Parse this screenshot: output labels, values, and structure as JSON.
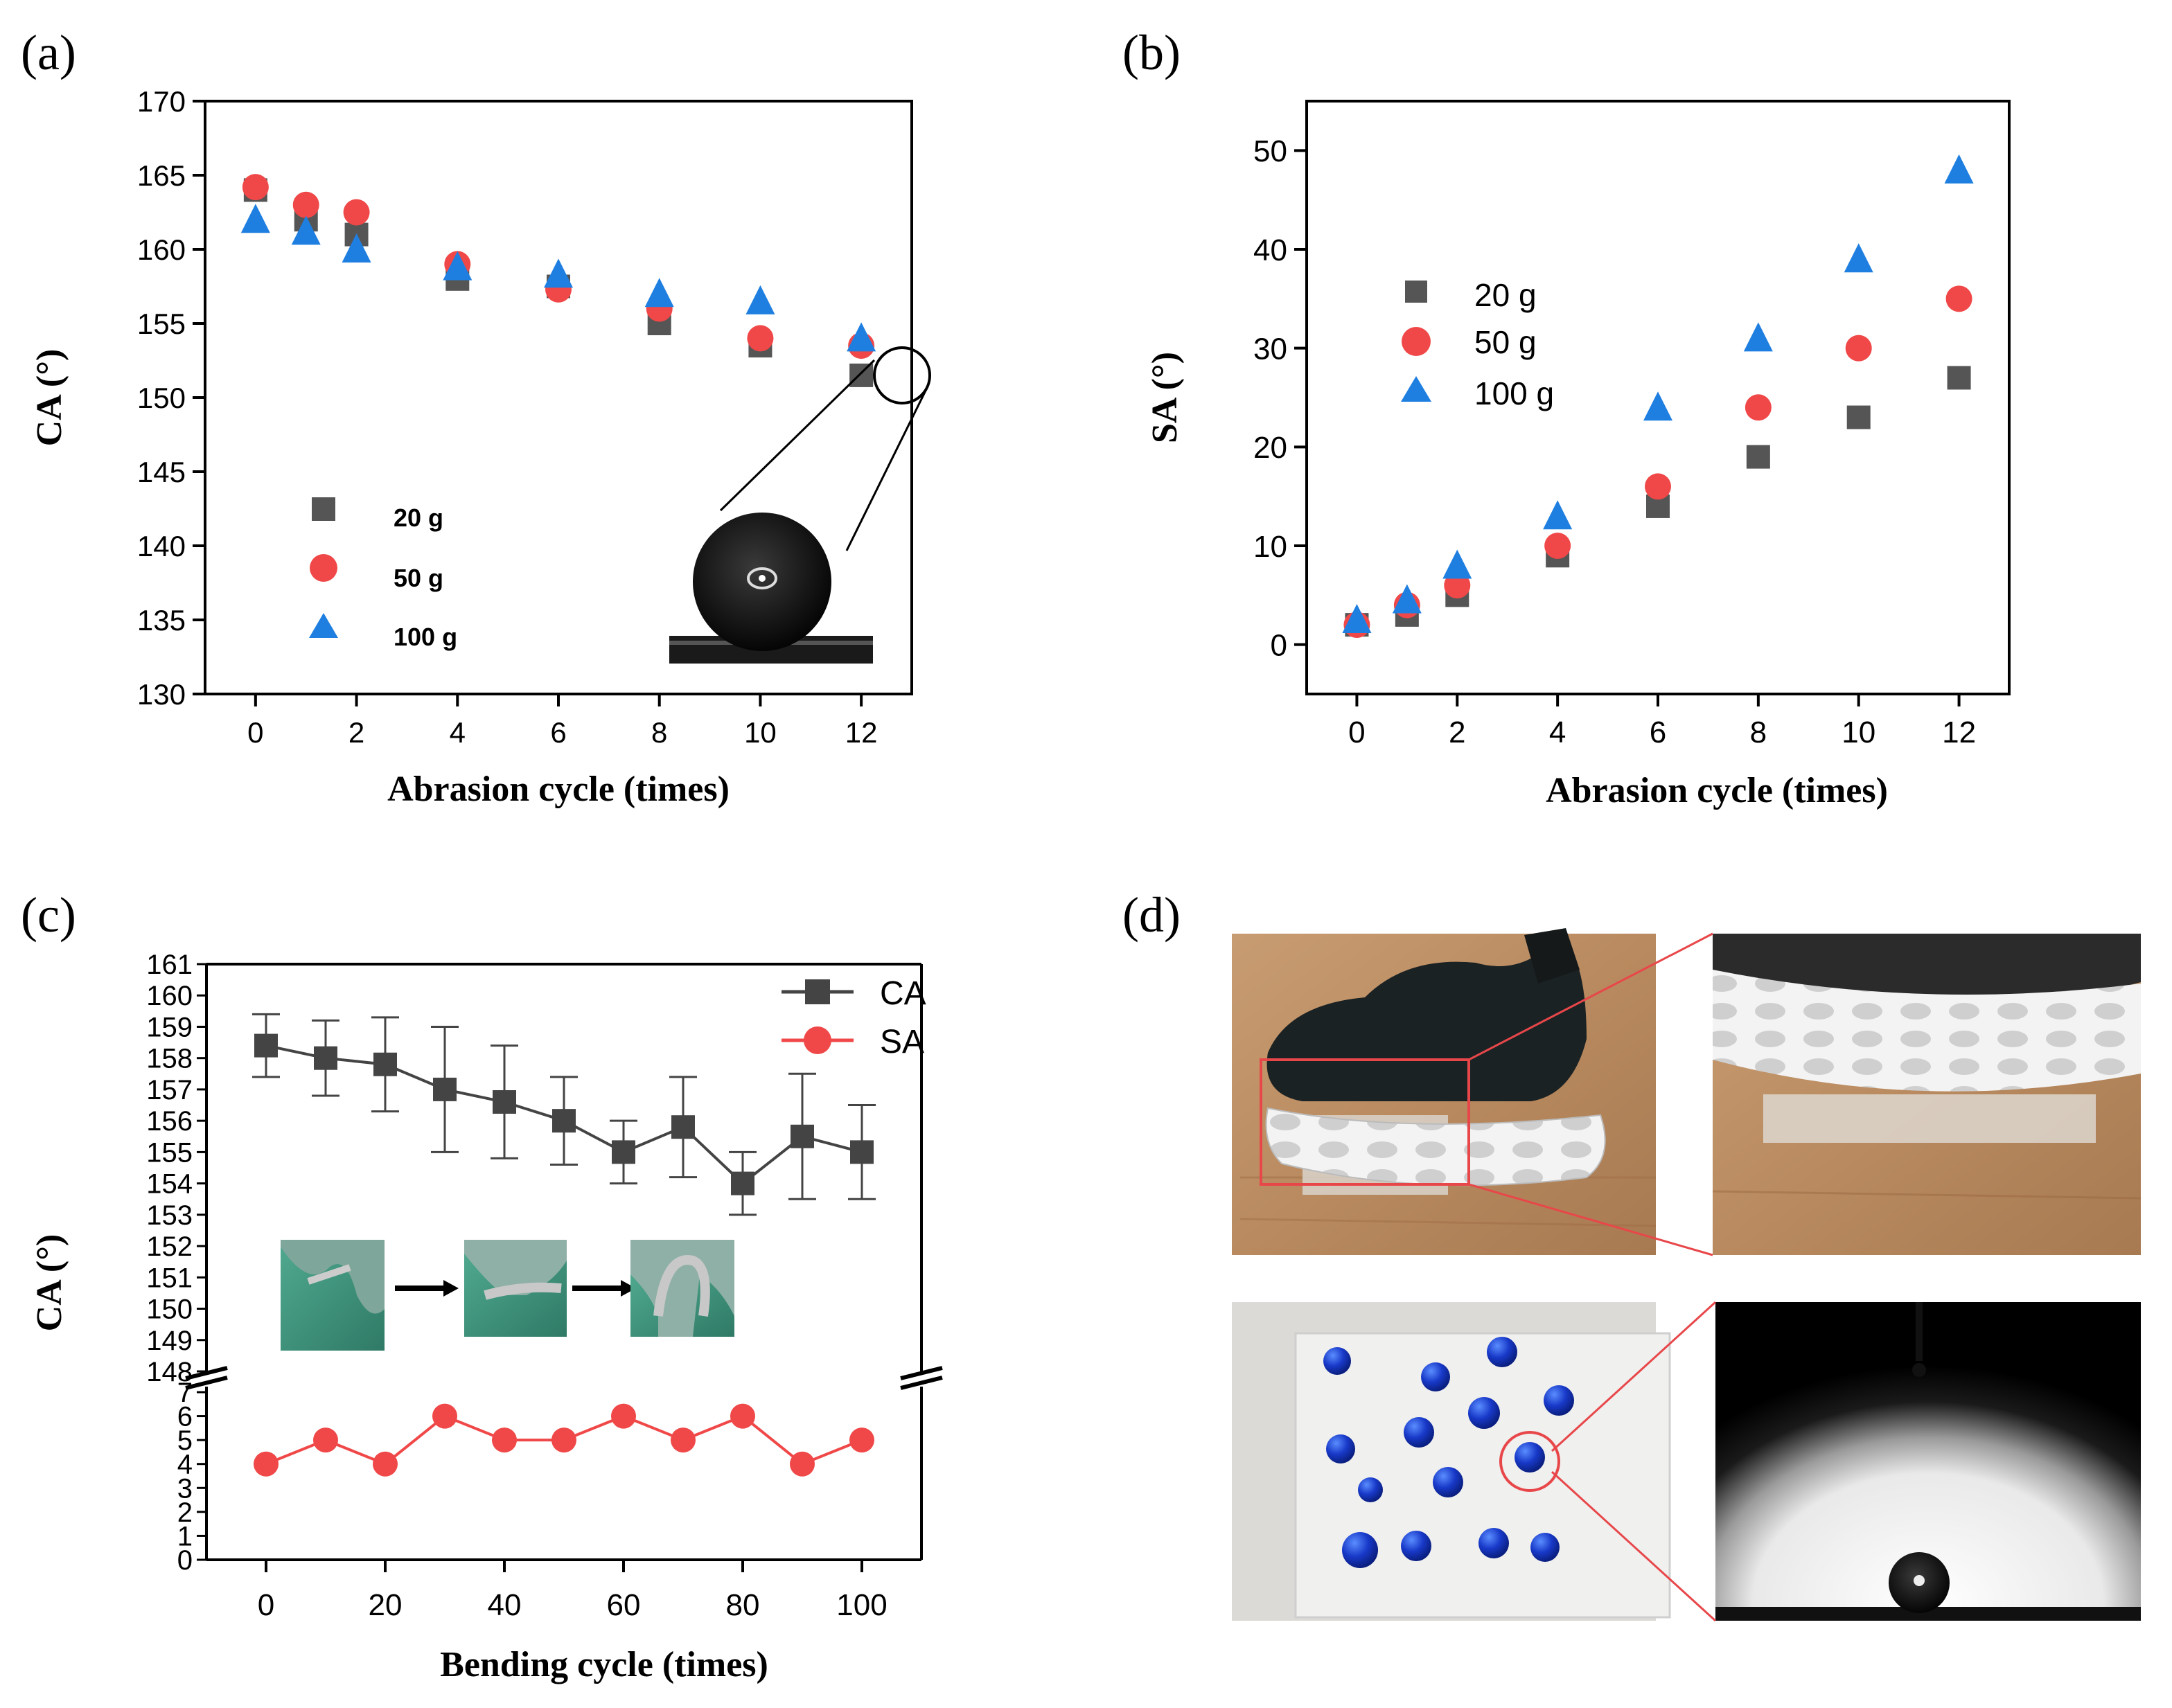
{
  "colors": {
    "s20": "#555555",
    "s50": "#f04848",
    "s100": "#1f7fe0",
    "ca_line": "#444444",
    "sa_line": "#f04848",
    "axis": "#000000",
    "photo_box": "#e8474a"
  },
  "panels": {
    "a": {
      "label": "(a)"
    },
    "b": {
      "label": "(b)"
    },
    "c": {
      "label": "(c)"
    },
    "d": {
      "label": "(d)"
    }
  },
  "chart_data": [
    {
      "id": "a",
      "type": "scatter",
      "xlabel": "Abrasion cycle (times)",
      "ylabel": "CA (°)",
      "xlim": [
        -1,
        13
      ],
      "ylim": [
        130,
        170
      ],
      "xticks": [
        0,
        2,
        4,
        6,
        8,
        10,
        12
      ],
      "yticks": [
        130,
        135,
        140,
        145,
        150,
        155,
        160,
        165,
        170
      ],
      "x": [
        0,
        1,
        2,
        4,
        6,
        8,
        10,
        12
      ],
      "legend_position": "lower-left",
      "series": [
        {
          "name": "20 g",
          "marker": "square",
          "color_key": "s20",
          "values": [
            164,
            162,
            161,
            158,
            157.5,
            155,
            153.5,
            151.5
          ]
        },
        {
          "name": "50 g",
          "marker": "circle",
          "color_key": "s50",
          "values": [
            164.2,
            163,
            162.5,
            159,
            157.3,
            156,
            154,
            153.5
          ]
        },
        {
          "name": "100 g",
          "marker": "triangle",
          "color_key": "s100",
          "values": [
            162,
            161.2,
            160,
            158.8,
            158.3,
            157,
            156.5,
            154
          ]
        }
      ],
      "inset": "droplet photo (contact angle image) at 12 cycles"
    },
    {
      "id": "b",
      "type": "scatter",
      "xlabel": "Abrasion cycle (times)",
      "ylabel": "SA (°)",
      "xlim": [
        -1,
        13
      ],
      "ylim": [
        -5,
        55
      ],
      "xticks": [
        0,
        2,
        4,
        6,
        8,
        10,
        12
      ],
      "yticks": [
        0,
        10,
        20,
        30,
        40,
        50
      ],
      "x": [
        0,
        1,
        2,
        4,
        6,
        8,
        10,
        12
      ],
      "legend_position": "upper-left",
      "series": [
        {
          "name": "20 g",
          "marker": "square",
          "color_key": "s20",
          "values": [
            2,
            3,
            5,
            9,
            14,
            19,
            23,
            27
          ]
        },
        {
          "name": "50 g",
          "marker": "circle",
          "color_key": "s50",
          "values": [
            2,
            4,
            6,
            10,
            16,
            24,
            30,
            35
          ]
        },
        {
          "name": "100 g",
          "marker": "triangle",
          "color_key": "s100",
          "values": [
            2.5,
            4.5,
            8,
            13,
            24,
            31,
            39,
            48
          ]
        }
      ]
    },
    {
      "id": "c",
      "type": "line",
      "xlabel": "Bending cycle (times)",
      "ylabel": "CA (°)",
      "xlim": [
        -10,
        110
      ],
      "xticks": [
        0,
        20,
        40,
        60,
        80,
        100
      ],
      "upper_ylim": [
        148,
        161
      ],
      "upper_yticks": [
        148,
        149,
        150,
        151,
        152,
        153,
        154,
        155,
        156,
        157,
        158,
        159,
        160,
        161
      ],
      "lower_ylim": [
        0,
        7
      ],
      "lower_yticks": [
        0,
        1,
        2,
        3,
        4,
        5,
        6,
        7
      ],
      "axis_break": true,
      "x": [
        0,
        10,
        20,
        30,
        40,
        50,
        60,
        70,
        80,
        90,
        100
      ],
      "legend_position": "top-right",
      "series": [
        {
          "name": "CA",
          "marker": "square",
          "color_key": "ca_line",
          "values": [
            158.4,
            158.0,
            157.8,
            157.0,
            156.6,
            156.0,
            155.0,
            155.8,
            154.0,
            155.5,
            155.0
          ],
          "err_plus": [
            1.0,
            1.2,
            1.5,
            2.0,
            1.8,
            1.4,
            1.0,
            1.6,
            1.0,
            2.0,
            1.5
          ],
          "err_minus": [
            1.0,
            1.2,
            1.5,
            2.0,
            1.8,
            1.4,
            1.0,
            1.6,
            1.0,
            2.0,
            1.5
          ]
        },
        {
          "name": "SA",
          "marker": "circle",
          "color_key": "sa_line",
          "values": [
            4,
            5,
            4,
            6,
            5,
            5,
            6,
            5,
            6,
            4,
            5
          ]
        }
      ]
    }
  ]
}
